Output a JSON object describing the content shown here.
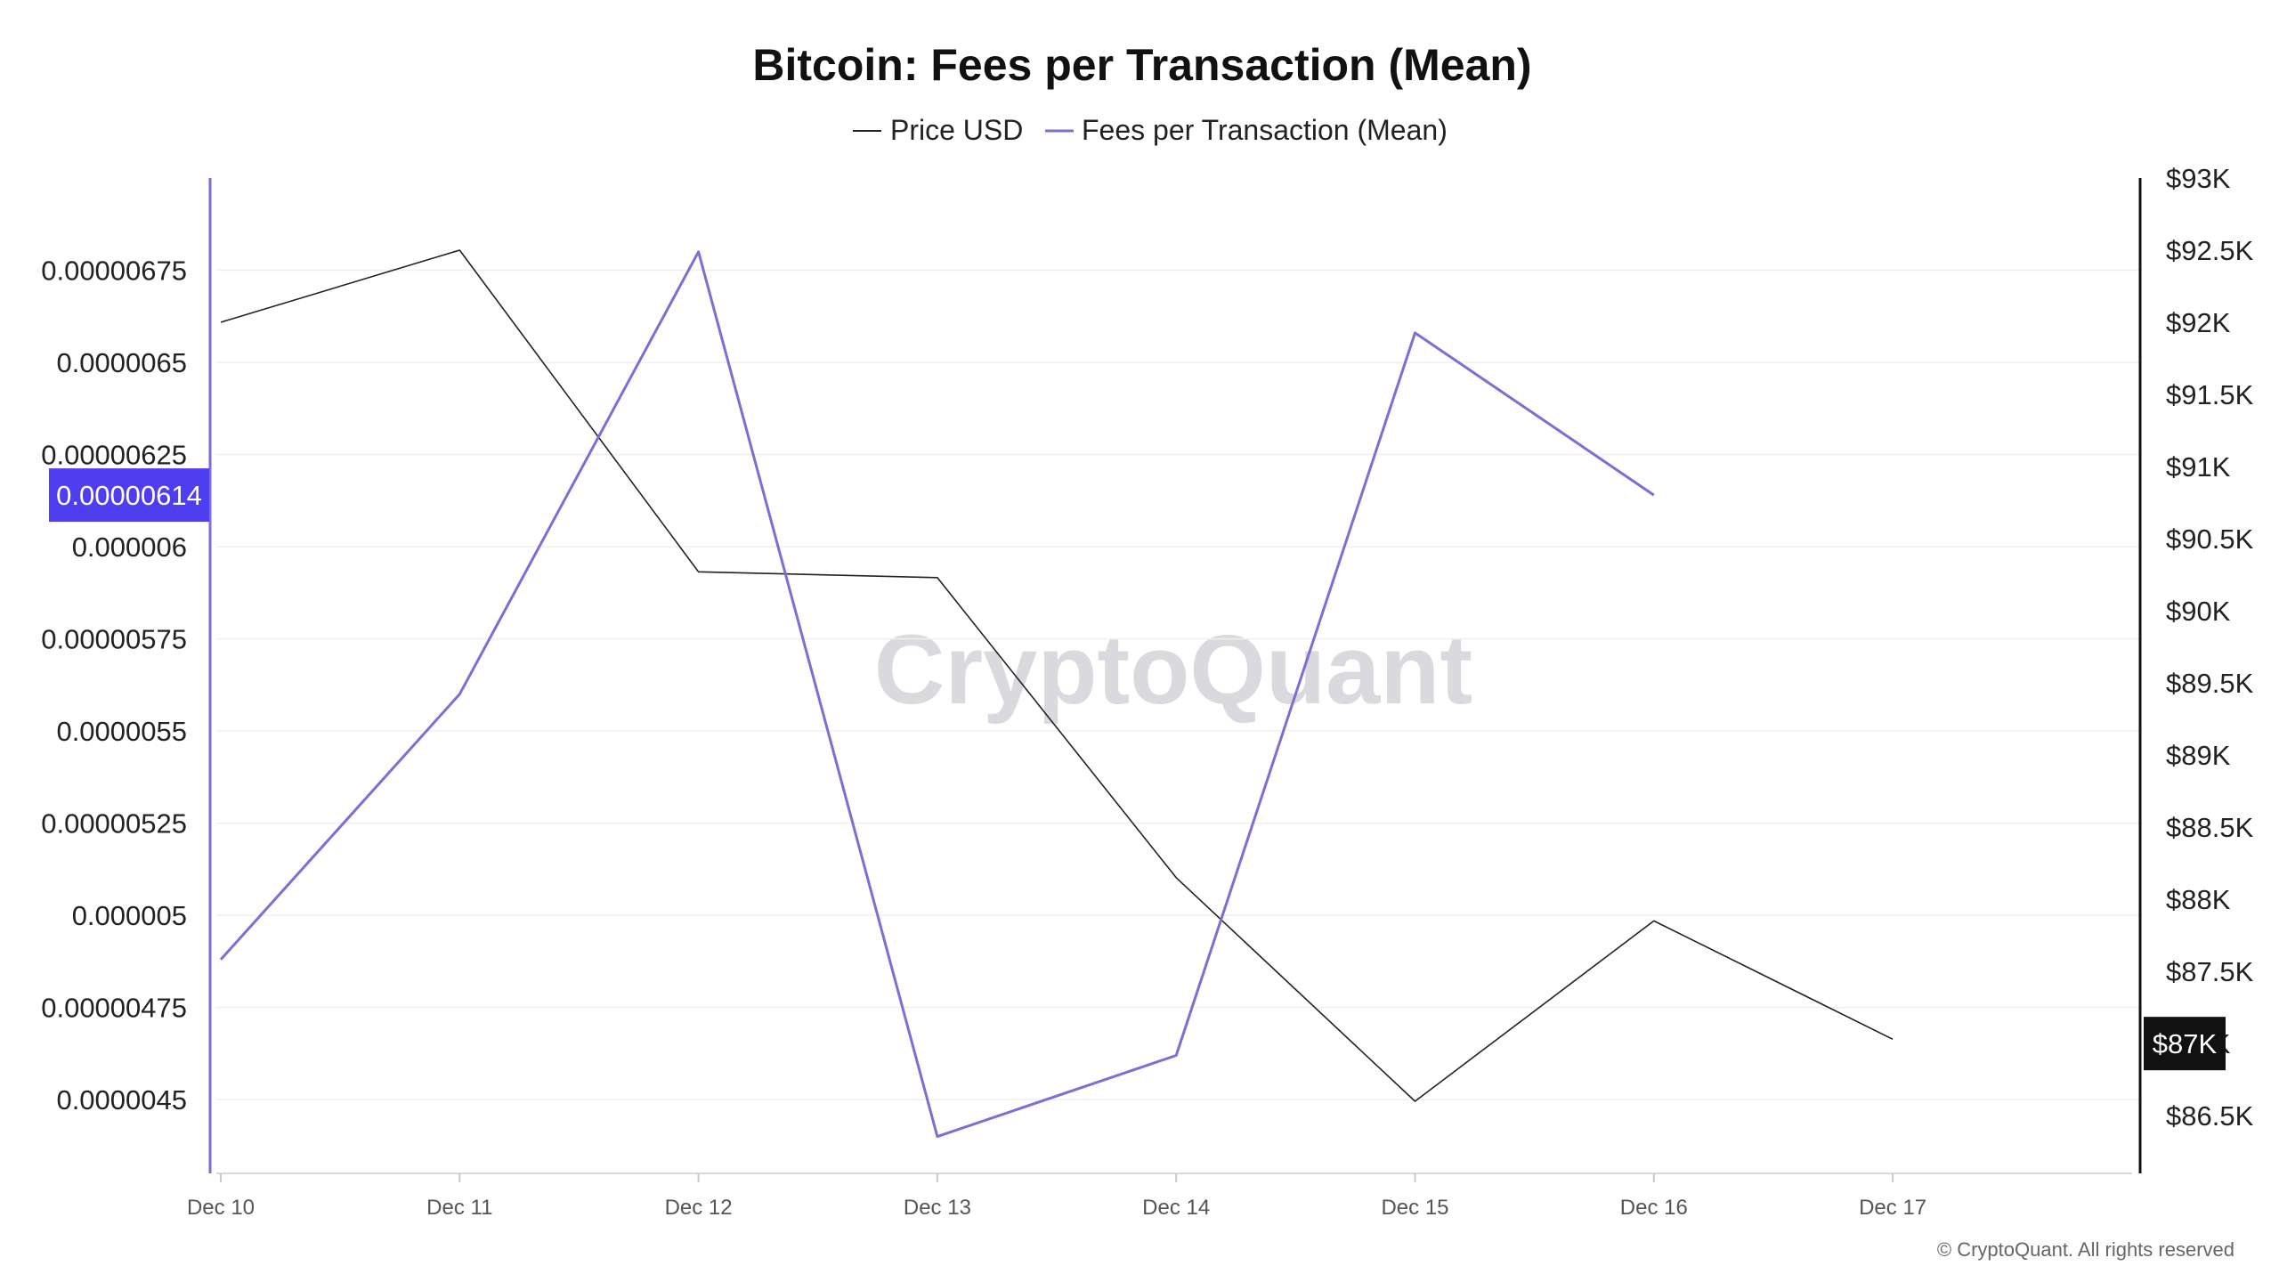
{
  "chart_data": {
    "type": "line",
    "title": "Bitcoin: Fees per Transaction (Mean)",
    "categories": [
      "Dec 10",
      "Dec 11",
      "Dec 12",
      "Dec 13",
      "Dec 14",
      "Dec 15",
      "Dec 16",
      "Dec 17"
    ],
    "series": [
      {
        "name": "Price USD",
        "axis": "right",
        "color": "#222222",
        "values": [
          92000,
          92500,
          90270,
          90230,
          88150,
          86600,
          87850,
          87030
        ]
      },
      {
        "name": "Fees per Transaction (Mean)",
        "axis": "left",
        "color": "#7b6fd6",
        "values": [
          4.88e-06,
          5.6e-06,
          6.8e-06,
          4.4e-06,
          4.62e-06,
          6.58e-06,
          6.14e-06,
          null
        ]
      }
    ],
    "left_axis": {
      "ticks": [
        4.5e-06,
        4.75e-06,
        5e-06,
        5.25e-06,
        5.5e-06,
        5.75e-06,
        6e-06,
        6.25e-06,
        6.5e-06,
        6.75e-06
      ],
      "tick_labels": [
        "0.0000045",
        "0.00000475",
        "0.000005",
        "0.00000525",
        "0.0000055",
        "0.00000575",
        "0.000006",
        "0.00000625",
        "0.0000065",
        "0.00000675"
      ],
      "ylim": [
        4.3e-06,
        7e-06
      ],
      "highlight_label": "0.00000614",
      "highlight_value": 6.14e-06,
      "highlight_color": "#4f3df0"
    },
    "right_axis": {
      "ticks": [
        86500,
        87000,
        87500,
        88000,
        88500,
        89000,
        89500,
        90000,
        90500,
        91000,
        91500,
        92000,
        92500,
        93000
      ],
      "tick_labels": [
        "$86.5K",
        "$87K",
        "$87.5K",
        "$88K",
        "$88.5K",
        "$89K",
        "$89.5K",
        "$90K",
        "$90.5K",
        "$91K",
        "$91.5K",
        "$92K",
        "$92.5K",
        "$93K"
      ],
      "ylim": [
        86100,
        93000
      ],
      "highlight_label": "$87K",
      "highlight_value": 87000,
      "highlight_color": "#111111"
    },
    "grid": true,
    "legend": "top-center"
  },
  "watermark": "CryptoQuant",
  "copyright": "© CryptoQuant. All rights reserved"
}
